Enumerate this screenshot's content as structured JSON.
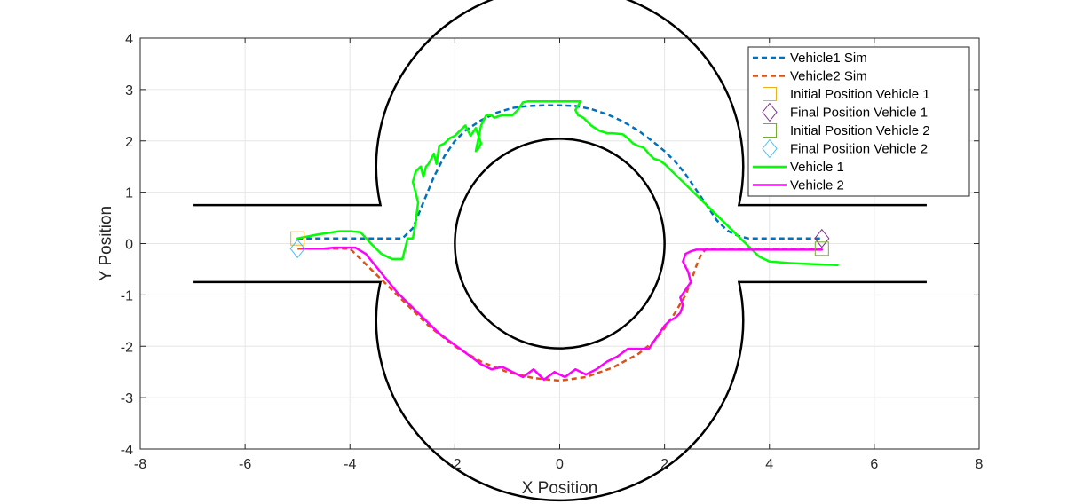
{
  "chart_data": {
    "type": "line",
    "xlabel": "X Position",
    "ylabel": "Y Position",
    "xlim": [
      -8,
      8
    ],
    "ylim": [
      -4,
      4
    ],
    "xticks": [
      "-8",
      "-6",
      "-4",
      "-2",
      "0",
      "2",
      "4",
      "6",
      "8"
    ],
    "yticks": [
      "-4",
      "-3",
      "-2",
      "-1",
      "0",
      "1",
      "2",
      "3",
      "4"
    ],
    "grid": true,
    "legend_position": "top-right",
    "track": {
      "inner_circle_radius": 2,
      "outer_circle_radius": 3.5,
      "road_half_width": 0.75,
      "road_x_extent": [
        -7,
        7
      ]
    },
    "series": [
      {
        "name": "Vehicle1 Sim",
        "style": "dashed",
        "color": "#0072BD",
        "x": [
          -5,
          -4.5,
          -4,
          -3.5,
          -3,
          -2.8,
          -2.6,
          -2.4,
          -2.2,
          -2.0,
          -1.8,
          -1.5,
          -1.2,
          -0.9,
          -0.6,
          -0.3,
          0,
          0.3,
          0.6,
          0.9,
          1.2,
          1.5,
          1.8,
          2.0,
          2.2,
          2.4,
          2.6,
          2.8,
          3.0,
          3.2,
          3.4,
          3.6,
          4,
          4.5,
          5
        ],
        "y": [
          0.1,
          0.1,
          0.1,
          0.1,
          0.1,
          0.3,
          0.8,
          1.3,
          1.7,
          2.0,
          2.2,
          2.4,
          2.55,
          2.64,
          2.68,
          2.69,
          2.69,
          2.68,
          2.62,
          2.52,
          2.38,
          2.2,
          1.97,
          1.8,
          1.6,
          1.35,
          1.05,
          0.75,
          0.45,
          0.25,
          0.15,
          0.1,
          0.1,
          0.1,
          0.1
        ]
      },
      {
        "name": "Vehicle2 Sim",
        "style": "dashed",
        "color": "#D95319",
        "x": [
          -5,
          -4.5,
          -4,
          -3.5,
          -3,
          -2.5,
          -2.0,
          -1.5,
          -1.0,
          -0.5,
          0,
          0.5,
          1.0,
          1.5,
          1.8,
          2.0,
          2.2,
          2.4,
          2.5,
          2.6,
          2.7,
          2.8,
          3.0,
          3.5,
          4,
          4.5,
          5
        ],
        "y": [
          -0.1,
          -0.1,
          -0.1,
          -0.6,
          -1.1,
          -1.6,
          -2.0,
          -2.3,
          -2.5,
          -2.62,
          -2.67,
          -2.6,
          -2.42,
          -2.15,
          -1.9,
          -1.65,
          -1.35,
          -1.0,
          -0.75,
          -0.45,
          -0.2,
          -0.1,
          -0.1,
          -0.1,
          -0.1,
          -0.1,
          -0.1
        ]
      },
      {
        "name": "Vehicle 1",
        "style": "solid",
        "color": "#00FF00",
        "x": [
          -5,
          -4.6,
          -4.2,
          -4.0,
          -3.8,
          -3.6,
          -3.4,
          -3.2,
          -3.0,
          -2.95,
          -2.9,
          -2.8,
          -2.75,
          -2.7,
          -2.75,
          -2.8,
          -2.75,
          -2.65,
          -2.6,
          -2.55,
          -2.5,
          -2.4,
          -2.35,
          -2.3,
          -2.2,
          -2.1,
          -2.0,
          -1.9,
          -1.8,
          -1.7,
          -1.6,
          -1.5,
          -1.55,
          -1.6,
          -1.5,
          -1.4,
          -1.3,
          -1.25,
          -1.1,
          -0.9,
          -0.8,
          -0.7,
          -0.6,
          -0.4,
          -0.2,
          0,
          0.2,
          0.4,
          0.3,
          0.35,
          0.45,
          0.6,
          0.75,
          0.9,
          1.0,
          1.2,
          1.3,
          1.4,
          1.5,
          1.6,
          1.7,
          1.8,
          1.9,
          2.0,
          2.2,
          2.4,
          2.6,
          2.8,
          3.0,
          3.2,
          3.4,
          3.6,
          3.8,
          4.0,
          4.4,
          4.8,
          5.3
        ],
        "y": [
          0.1,
          0.18,
          0.24,
          0.24,
          0.22,
          0.0,
          -0.2,
          -0.3,
          -0.3,
          -0.1,
          0.1,
          0.1,
          0.4,
          0.8,
          1.0,
          1.2,
          1.4,
          1.5,
          1.3,
          1.5,
          1.55,
          1.75,
          1.55,
          1.9,
          1.95,
          2.05,
          2.1,
          2.2,
          2.3,
          2.1,
          2.25,
          1.95,
          1.85,
          1.8,
          2.3,
          2.5,
          2.5,
          2.45,
          2.5,
          2.5,
          2.6,
          2.75,
          2.77,
          2.77,
          2.77,
          2.77,
          2.77,
          2.77,
          2.6,
          2.5,
          2.45,
          2.3,
          2.2,
          2.15,
          2.15,
          2.13,
          2.05,
          1.95,
          1.9,
          1.87,
          1.75,
          1.65,
          1.62,
          1.55,
          1.35,
          1.15,
          0.95,
          0.75,
          0.55,
          0.35,
          0.15,
          -0.05,
          -0.25,
          -0.35,
          -0.38,
          -0.4,
          -0.42
        ]
      },
      {
        "name": "Vehicle 2",
        "style": "solid",
        "color": "#FF00FF",
        "x": [
          -4.9,
          -4.7,
          -4.5,
          -4.3,
          -4.1,
          -3.9,
          -3.7,
          -3.5,
          -3.3,
          -3.1,
          -2.9,
          -2.7,
          -2.5,
          -2.3,
          -2.1,
          -1.9,
          -1.7,
          -1.5,
          -1.3,
          -1.1,
          -0.9,
          -0.7,
          -0.5,
          -0.3,
          -0.1,
          0.1,
          0.3,
          0.5,
          0.7,
          0.9,
          1.1,
          1.3,
          1.5,
          1.7,
          1.9,
          2.0,
          2.1,
          2.2,
          2.3,
          2.35,
          2.3,
          2.4,
          2.5,
          2.45,
          2.35,
          2.4,
          2.5,
          2.6,
          2.7,
          2.8,
          3.0,
          3.5,
          4.0,
          4.5,
          5.0
        ],
        "y": [
          -0.1,
          -0.1,
          -0.1,
          -0.08,
          -0.08,
          -0.08,
          -0.2,
          -0.45,
          -0.7,
          -0.95,
          -1.15,
          -1.35,
          -1.55,
          -1.75,
          -1.9,
          -2.05,
          -2.2,
          -2.35,
          -2.45,
          -2.4,
          -2.5,
          -2.6,
          -2.45,
          -2.65,
          -2.5,
          -2.6,
          -2.45,
          -2.55,
          -2.45,
          -2.3,
          -2.2,
          -2.05,
          -2.05,
          -2.05,
          -1.75,
          -1.6,
          -1.5,
          -1.45,
          -1.35,
          -1.2,
          -1.05,
          -0.9,
          -0.75,
          -0.55,
          -0.35,
          -0.2,
          -0.15,
          -0.12,
          -0.12,
          -0.12,
          -0.12,
          -0.12,
          -0.12,
          -0.12,
          -0.12
        ]
      }
    ],
    "markers": [
      {
        "name": "Initial Position Vehicle 1",
        "shape": "square",
        "color": "#EDB120",
        "x": -5,
        "y": 0.1
      },
      {
        "name": "Final Position Vehicle 1",
        "shape": "diamond",
        "color": "#7E2F8E",
        "x": 5,
        "y": 0.1
      },
      {
        "name": "Initial Position Vehicle 2",
        "shape": "square",
        "color": "#77AC30",
        "x": 5,
        "y": -0.1
      },
      {
        "name": "Final Position Vehicle 2",
        "shape": "diamond",
        "color": "#4DBEEE",
        "x": -5,
        "y": -0.1
      }
    ],
    "legend": [
      {
        "label": "Vehicle1 Sim",
        "kind": "line",
        "style": "dashed",
        "color": "#0072BD"
      },
      {
        "label": "Vehicle2 Sim",
        "kind": "line",
        "style": "dashed",
        "color": "#D95319"
      },
      {
        "label": "Initial Position Vehicle 1",
        "kind": "marker",
        "shape": "square",
        "color": "#EDB120"
      },
      {
        "label": "Final Position Vehicle 1",
        "kind": "marker",
        "shape": "diamond",
        "color": "#7E2F8E"
      },
      {
        "label": "Initial Position Vehicle 2",
        "kind": "marker",
        "shape": "square",
        "color": "#77AC30"
      },
      {
        "label": "Final Position Vehicle 2",
        "kind": "marker",
        "shape": "diamond",
        "color": "#4DBEEE"
      },
      {
        "label": "Vehicle 1",
        "kind": "line",
        "style": "solid",
        "color": "#00FF00"
      },
      {
        "label": "Vehicle 2",
        "kind": "line",
        "style": "solid",
        "color": "#FF00FF"
      }
    ]
  }
}
